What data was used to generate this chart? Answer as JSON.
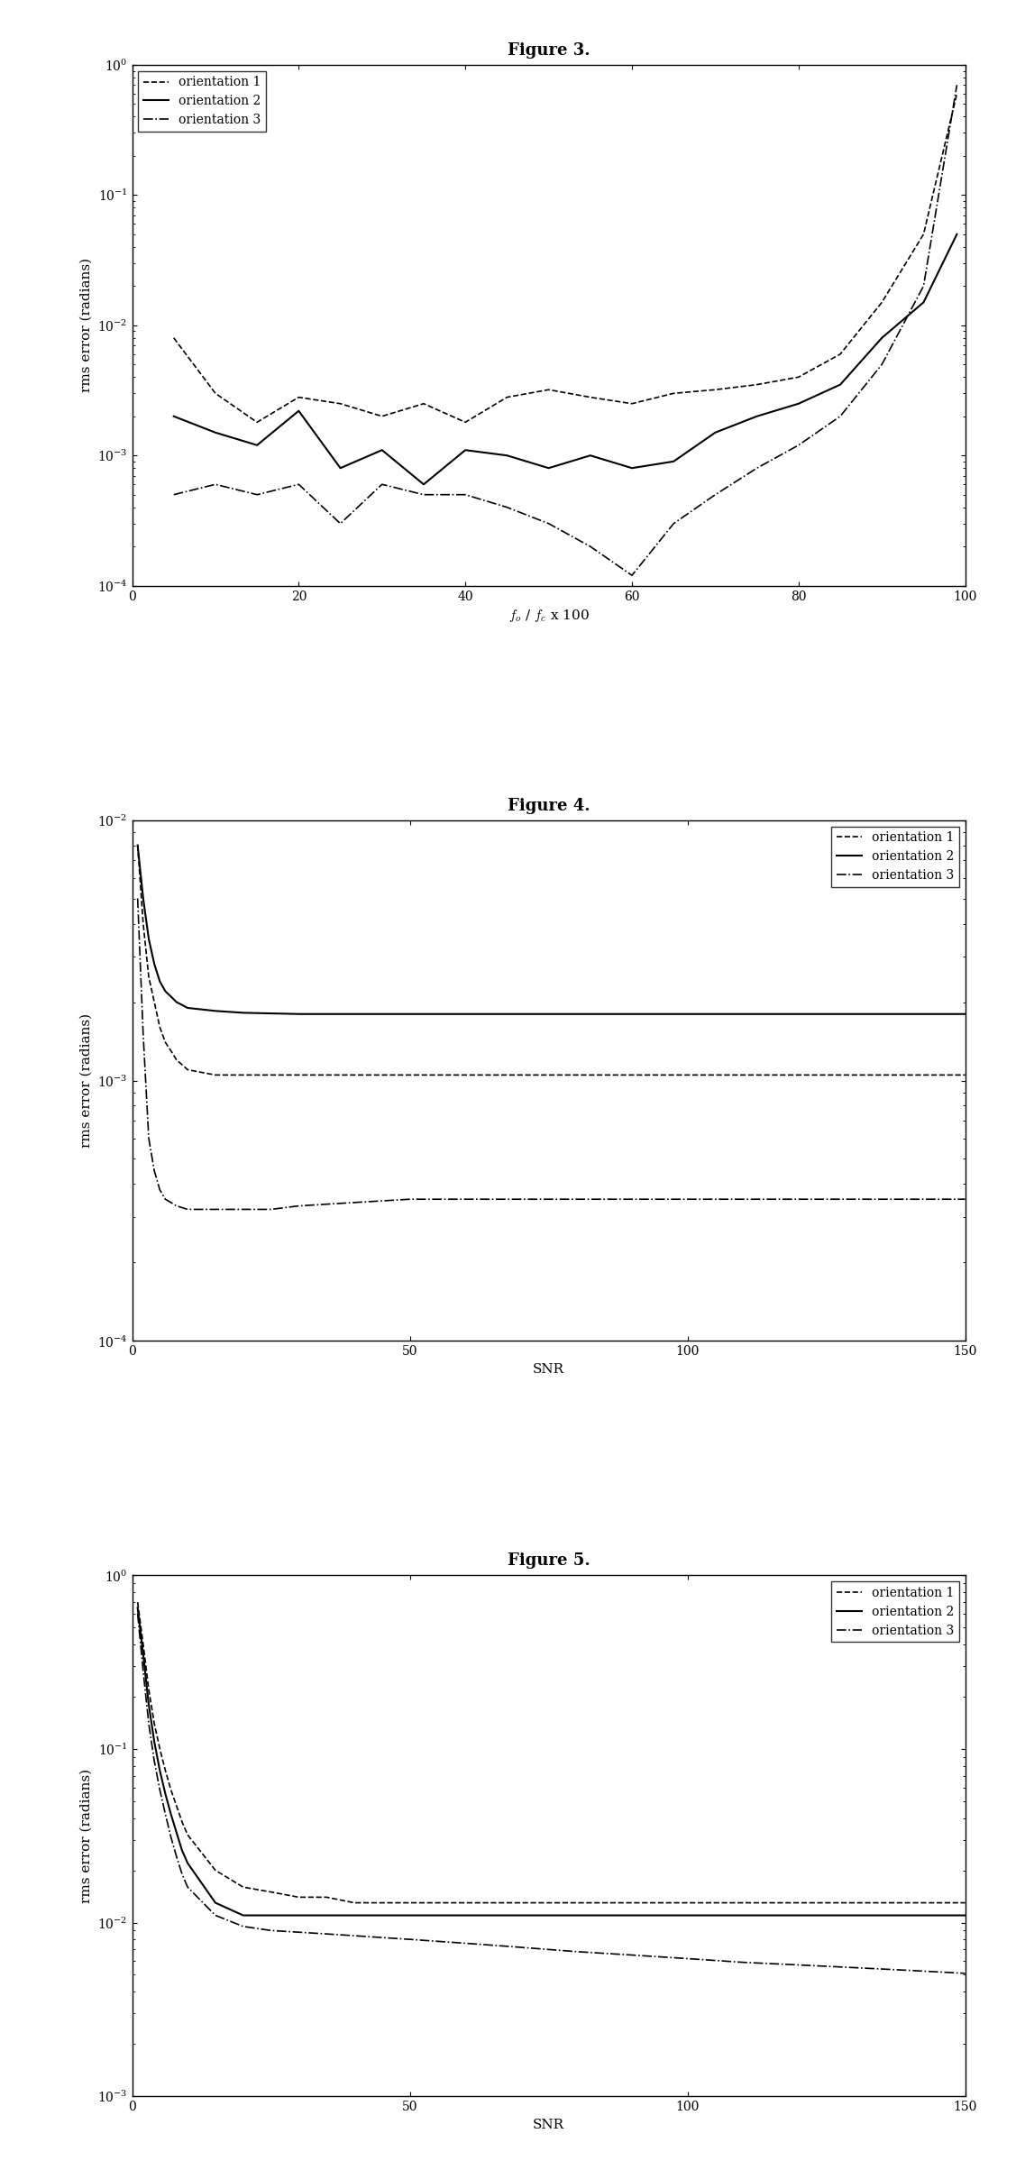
{
  "fig3": {
    "title": "Figure 3.",
    "xlabel": "f_o / f_c x 100",
    "ylabel": "rms error (radians)",
    "xlim": [
      0,
      100
    ],
    "ylim_log": [
      -4,
      0
    ],
    "x": [
      5,
      10,
      15,
      20,
      25,
      30,
      35,
      40,
      45,
      50,
      55,
      60,
      65,
      70,
      75,
      80,
      85,
      90,
      95,
      99
    ],
    "orient1": [
      0.008,
      0.003,
      0.0018,
      0.0028,
      0.0025,
      0.002,
      0.0025,
      0.0018,
      0.0028,
      0.0032,
      0.0028,
      0.0025,
      0.003,
      0.0032,
      0.0035,
      0.004,
      0.006,
      0.015,
      0.05,
      0.6
    ],
    "orient2": [
      0.002,
      0.0015,
      0.0012,
      0.0022,
      0.0008,
      0.0011,
      0.0006,
      0.0011,
      0.001,
      0.0008,
      0.001,
      0.0008,
      0.0009,
      0.0015,
      0.002,
      0.0025,
      0.0035,
      0.008,
      0.015,
      0.05
    ],
    "orient3": [
      0.0005,
      0.0006,
      0.0005,
      0.0006,
      0.0003,
      0.0006,
      0.0005,
      0.0005,
      0.0004,
      0.0003,
      0.0002,
      0.00012,
      0.0003,
      0.0005,
      0.0008,
      0.0012,
      0.002,
      0.005,
      0.02,
      0.7
    ],
    "legend": [
      "orientation 1",
      "orientation 2",
      "orientation 3"
    ],
    "styles": [
      "--",
      "-",
      "-."
    ]
  },
  "fig4": {
    "title": "Figure 4.",
    "xlabel": "SNR",
    "ylabel": "rms error (radians)",
    "xlim": [
      0,
      150
    ],
    "ylim_log": [
      -4,
      -2
    ],
    "snr": [
      1,
      2,
      3,
      4,
      5,
      6,
      7,
      8,
      9,
      10,
      15,
      20,
      25,
      30,
      40,
      50,
      60,
      70,
      80,
      90,
      100,
      110,
      120,
      130,
      140,
      150
    ],
    "orient1": [
      0.008,
      0.004,
      0.0025,
      0.002,
      0.0016,
      0.0014,
      0.0013,
      0.0012,
      0.00115,
      0.0011,
      0.00105,
      0.00105,
      0.00105,
      0.00105,
      0.00105,
      0.00105,
      0.00105,
      0.00105,
      0.00105,
      0.00105,
      0.00105,
      0.00105,
      0.00105,
      0.00105,
      0.00105,
      0.00105
    ],
    "orient2": [
      0.008,
      0.005,
      0.0035,
      0.0028,
      0.0024,
      0.0022,
      0.0021,
      0.002,
      0.00195,
      0.0019,
      0.00185,
      0.00182,
      0.00181,
      0.0018,
      0.0018,
      0.0018,
      0.0018,
      0.0018,
      0.0018,
      0.0018,
      0.0018,
      0.0018,
      0.0018,
      0.0018,
      0.0018,
      0.0018
    ],
    "orient3": [
      0.005,
      0.0015,
      0.0006,
      0.00045,
      0.00038,
      0.00035,
      0.00034,
      0.00033,
      0.000325,
      0.00032,
      0.00032,
      0.00032,
      0.00032,
      0.00033,
      0.00034,
      0.00035,
      0.00035,
      0.00035,
      0.00035,
      0.00035,
      0.00035,
      0.00035,
      0.00035,
      0.00035,
      0.00035,
      0.00035
    ],
    "legend": [
      "orientation 1",
      "orientation 2",
      "orientation 3"
    ],
    "styles": [
      "--",
      "-",
      "-."
    ]
  },
  "fig5": {
    "title": "Figure 5.",
    "xlabel": "SNR",
    "ylabel": "rms error (radians)",
    "xlim": [
      0,
      150
    ],
    "ylim_log": [
      -3,
      0
    ],
    "snr": [
      1,
      2,
      3,
      4,
      5,
      6,
      7,
      8,
      9,
      10,
      15,
      20,
      25,
      30,
      35,
      40,
      50,
      60,
      70,
      80,
      90,
      100,
      110,
      120,
      130,
      140,
      150
    ],
    "orient1": [
      0.7,
      0.4,
      0.22,
      0.14,
      0.1,
      0.075,
      0.058,
      0.047,
      0.038,
      0.032,
      0.02,
      0.016,
      0.015,
      0.014,
      0.014,
      0.013,
      0.013,
      0.013,
      0.013,
      0.013,
      0.013,
      0.013,
      0.013,
      0.013,
      0.013,
      0.013,
      0.013
    ],
    "orient2": [
      0.65,
      0.35,
      0.18,
      0.11,
      0.075,
      0.055,
      0.042,
      0.033,
      0.026,
      0.022,
      0.013,
      0.011,
      0.011,
      0.011,
      0.011,
      0.011,
      0.011,
      0.011,
      0.011,
      0.011,
      0.011,
      0.011,
      0.011,
      0.011,
      0.011,
      0.011,
      0.011
    ],
    "orient3": [
      0.6,
      0.28,
      0.14,
      0.085,
      0.058,
      0.042,
      0.031,
      0.024,
      0.019,
      0.016,
      0.011,
      0.0095,
      0.009,
      0.0088,
      0.0086,
      0.0084,
      0.008,
      0.0076,
      0.0072,
      0.0068,
      0.0065,
      0.0062,
      0.0059,
      0.0057,
      0.0055,
      0.0053,
      0.0051
    ],
    "legend": [
      "orientation 1",
      "orientation 2",
      "orientation 3"
    ],
    "styles": [
      "--",
      "-",
      "-."
    ]
  },
  "line_color": "#000000",
  "bg_color": "#ffffff",
  "fontsize_label": 11,
  "fontsize_title": 13,
  "fontsize_legend": 10,
  "fontsize_tick": 10
}
